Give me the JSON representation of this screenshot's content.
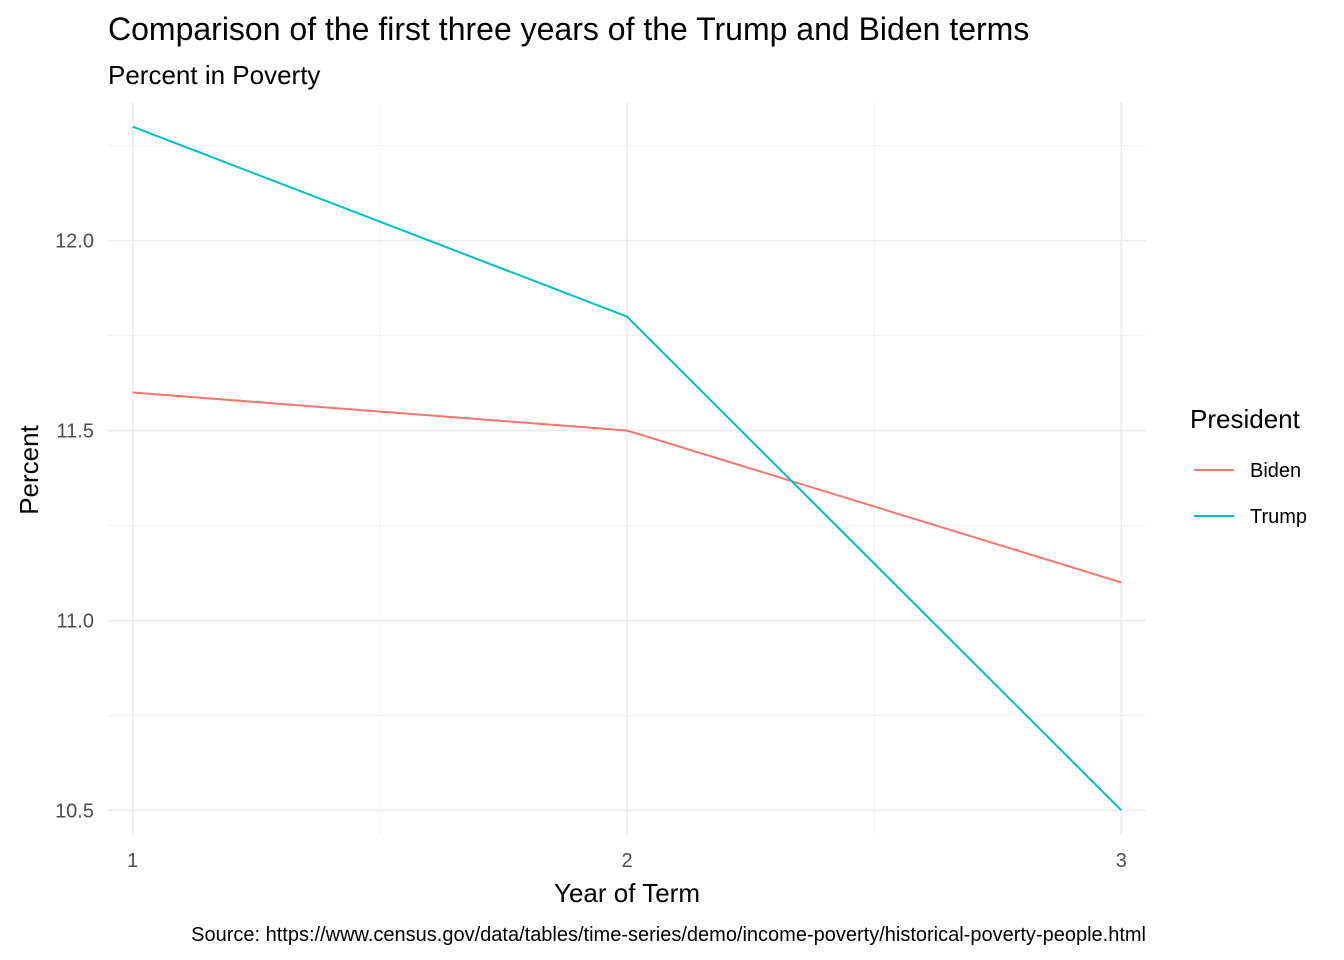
{
  "chart_data": {
    "type": "line",
    "title": "Comparison of the first three years of the Trump and Biden terms",
    "subtitle": "Percent in Poverty",
    "xlabel": "Year of Term",
    "ylabel": "Percent",
    "caption": "Source: https://www.census.gov/data/tables/time-series/demo/income-poverty/historical-poverty-people.html",
    "x": [
      1,
      2,
      3
    ],
    "x_ticks": [
      "1",
      "2",
      "3"
    ],
    "y_ticks": [
      "10.5",
      "11.0",
      "11.5",
      "12.0"
    ],
    "xlim": [
      0.95,
      3.05
    ],
    "ylim": [
      10.435,
      12.365
    ],
    "grid": true,
    "legend": {
      "title": "President",
      "position": "right"
    },
    "series": [
      {
        "name": "Biden",
        "values": [
          11.6,
          11.5,
          11.1
        ],
        "color": "#F8766D"
      },
      {
        "name": "Trump",
        "values": [
          12.3,
          11.8,
          10.5
        ],
        "color": "#00BFC4"
      }
    ]
  }
}
